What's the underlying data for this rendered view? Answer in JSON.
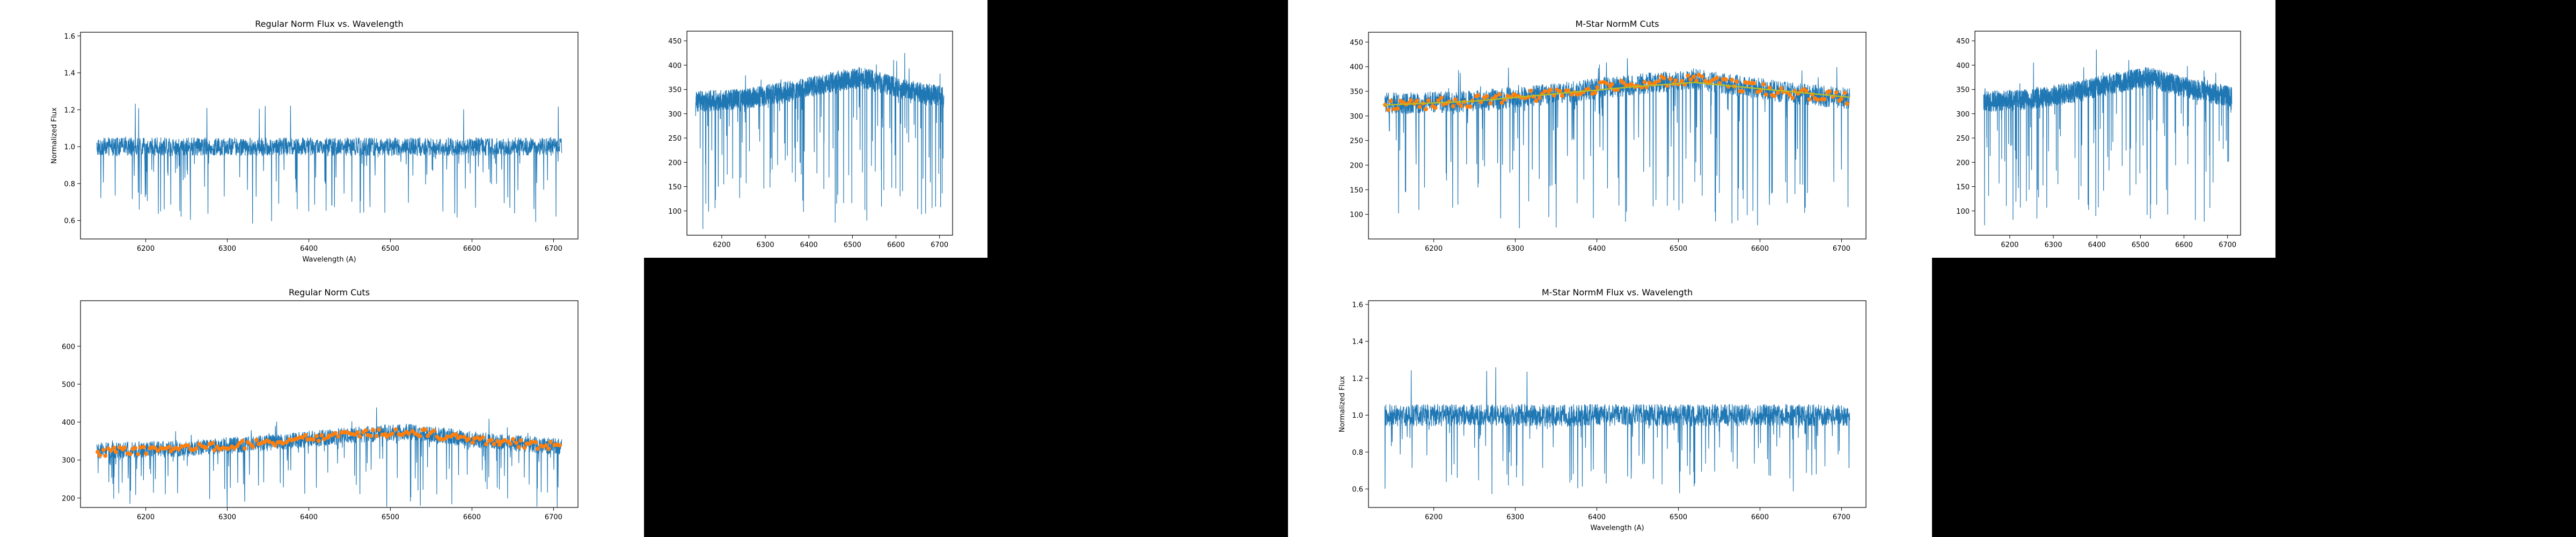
{
  "colors": {
    "spectrum": "#1f77b4",
    "fit": "#ff7f0e",
    "cont": "#bcbd22"
  },
  "chart_data": [
    {
      "id": "p1",
      "type": "line",
      "title": "Regular Norm Flux vs. Wavelength",
      "xlabel": "Wavelength (A)",
      "ylabel": "Normalized Flux",
      "xlim": [
        6120,
        6730
      ],
      "ylim": [
        0.5,
        1.62
      ],
      "xticks": [
        6200,
        6300,
        6400,
        6500,
        6600,
        6700
      ],
      "yticks": [
        0.6,
        0.8,
        1.0,
        1.2,
        1.4,
        1.6
      ],
      "ytick_labels": [
        "0.6",
        "0.8",
        "1.0",
        "1.2",
        "1.4",
        "1.6"
      ],
      "series": [
        {
          "kind": "normflux",
          "x_range": [
            6140,
            6710
          ],
          "noise": 0.05,
          "dip_rate": 0.06,
          "dip_depth": 0.4,
          "spike": 1.25
        }
      ]
    },
    {
      "id": "p2",
      "type": "line",
      "title": "",
      "xlabel": "",
      "ylabel": "",
      "xlim": [
        6120,
        6730
      ],
      "ylim": [
        50,
        470
      ],
      "xticks": [
        6200,
        6300,
        6400,
        6500,
        6600,
        6700
      ],
      "yticks": [
        100,
        150,
        200,
        250,
        300,
        350,
        400,
        450
      ],
      "ytick_labels": [
        "100",
        "150",
        "200",
        "250",
        "300",
        "350",
        "400",
        "450"
      ],
      "series": [
        {
          "kind": "raw",
          "x_range": [
            6140,
            6710
          ],
          "continuum": [
            [
              6140,
              325
            ],
            [
              6250,
              330
            ],
            [
              6350,
              345
            ],
            [
              6450,
              365
            ],
            [
              6520,
              375
            ],
            [
              6620,
              350
            ],
            [
              6710,
              335
            ]
          ],
          "noise": 22,
          "dip_rate": 0.06,
          "min_flux": 80
        }
      ]
    },
    {
      "id": "p3",
      "type": "line",
      "title": "M-Star NormM Cuts",
      "xlabel": "",
      "ylabel": "",
      "xlim": [
        6120,
        6730
      ],
      "ylim": [
        50,
        470
      ],
      "xticks": [
        6200,
        6300,
        6400,
        6500,
        6600,
        6700
      ],
      "yticks": [
        100,
        150,
        200,
        250,
        300,
        350,
        400,
        450
      ],
      "ytick_labels": [
        "100",
        "150",
        "200",
        "250",
        "300",
        "350",
        "400",
        "450"
      ],
      "series": [
        {
          "kind": "raw",
          "x_range": [
            6140,
            6710
          ],
          "continuum": [
            [
              6140,
              325
            ],
            [
              6250,
              330
            ],
            [
              6350,
              345
            ],
            [
              6450,
              365
            ],
            [
              6520,
              375
            ],
            [
              6620,
              350
            ],
            [
              6710,
              335
            ]
          ],
          "noise": 22,
          "dip_rate": 0.06,
          "min_flux": 80
        },
        {
          "kind": "points",
          "continuum": [
            [
              6140,
              320
            ],
            [
              6250,
              330
            ],
            [
              6350,
              345
            ],
            [
              6450,
              368
            ],
            [
              6520,
              375
            ],
            [
              6620,
              350
            ],
            [
              6710,
              335
            ]
          ],
          "count": 160
        },
        {
          "kind": "line",
          "points": [
            [
              6140,
              322
            ],
            [
              6250,
              330
            ],
            [
              6350,
              345
            ],
            [
              6450,
              360
            ],
            [
              6520,
              368
            ],
            [
              6620,
              352
            ],
            [
              6710,
              338
            ]
          ]
        }
      ]
    },
    {
      "id": "p4",
      "type": "line",
      "title": "",
      "xlabel": "",
      "ylabel": "",
      "xlim": [
        6120,
        6730
      ],
      "ylim": [
        50,
        470
      ],
      "xticks": [
        6200,
        6300,
        6400,
        6500,
        6600,
        6700
      ],
      "yticks": [
        100,
        150,
        200,
        250,
        300,
        350,
        400,
        450
      ],
      "ytick_labels": [
        "100",
        "150",
        "200",
        "250",
        "300",
        "350",
        "400",
        "450"
      ],
      "series": [
        {
          "kind": "raw",
          "x_range": [
            6140,
            6710
          ],
          "continuum": [
            [
              6140,
              325
            ],
            [
              6250,
              330
            ],
            [
              6350,
              345
            ],
            [
              6450,
              365
            ],
            [
              6520,
              375
            ],
            [
              6620,
              350
            ],
            [
              6710,
              335
            ]
          ],
          "noise": 22,
          "dip_rate": 0.06,
          "min_flux": 80
        }
      ]
    },
    {
      "id": "p5",
      "type": "line",
      "title": "Regular Norm Cuts",
      "xlabel": "",
      "ylabel": "",
      "xlim": [
        6120,
        6730
      ],
      "ylim": [
        175,
        720
      ],
      "xticks": [
        6200,
        6300,
        6400,
        6500,
        6600,
        6700
      ],
      "yticks": [
        200,
        300,
        400,
        500,
        600
      ],
      "ytick_labels": [
        "200",
        "300",
        "400",
        "500",
        "600"
      ],
      "series": [
        {
          "kind": "raw",
          "x_range": [
            6140,
            6710
          ],
          "continuum": [
            [
              6140,
              325
            ],
            [
              6250,
              330
            ],
            [
              6350,
              345
            ],
            [
              6450,
              365
            ],
            [
              6520,
              375
            ],
            [
              6620,
              350
            ],
            [
              6710,
              335
            ]
          ],
          "noise": 22,
          "dip_rate": 0.06,
          "min_flux": 180
        },
        {
          "kind": "points",
          "continuum": [
            [
              6140,
              320
            ],
            [
              6250,
              330
            ],
            [
              6350,
              345
            ],
            [
              6450,
              368
            ],
            [
              6520,
              375
            ],
            [
              6620,
              350
            ],
            [
              6710,
              335
            ]
          ],
          "count": 170
        }
      ]
    },
    {
      "id": "p6",
      "type": "line",
      "title": "M-Star NormM Flux vs. Wavelength",
      "xlabel": "Wavelength (A)",
      "ylabel": "Normalized Flux",
      "xlim": [
        6120,
        6730
      ],
      "ylim": [
        0.5,
        1.62
      ],
      "xticks": [
        6200,
        6300,
        6400,
        6500,
        6600,
        6700
      ],
      "yticks": [
        0.6,
        0.8,
        1.0,
        1.2,
        1.4,
        1.6
      ],
      "ytick_labels": [
        "0.6",
        "0.8",
        "1.0",
        "1.2",
        "1.4",
        "1.6"
      ],
      "series": [
        {
          "kind": "normflux",
          "x_range": [
            6140,
            6710
          ],
          "noise": 0.06,
          "dip_rate": 0.06,
          "dip_depth": 0.4,
          "spike": 1.26
        }
      ]
    }
  ]
}
